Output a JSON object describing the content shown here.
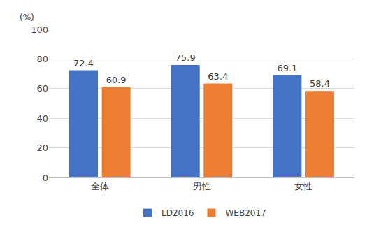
{
  "chart_data": {
    "type": "bar",
    "ylabel": "(%)",
    "categories": [
      "全体",
      "男性",
      "女性"
    ],
    "series": [
      {
        "name": "LD2016",
        "color": "#4472c4",
        "values": [
          72.4,
          75.9,
          69.1
        ]
      },
      {
        "name": "WEB2017",
        "color": "#ed7d31",
        "values": [
          60.9,
          63.4,
          58.4
        ]
      }
    ],
    "ylim": [
      0,
      100
    ],
    "yticks": [
      0,
      20,
      40,
      60,
      80,
      100
    ],
    "grid": true,
    "legend": "bottom",
    "data_labels": true
  }
}
